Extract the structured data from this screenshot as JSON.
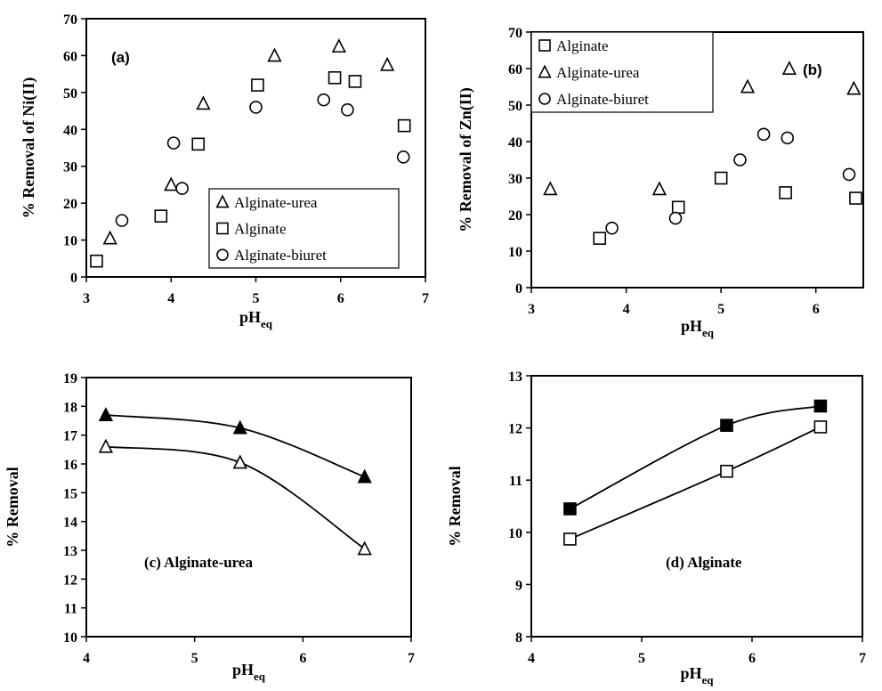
{
  "figure_colors": {
    "marker_stroke": "#000000",
    "line": "#000000",
    "background": "#ffffff"
  },
  "chart_data": [
    {
      "id": "a",
      "type": "scatter",
      "panel_label": "(a)",
      "xlabel": "pH",
      "xlabel_sub": "eq",
      "ylabel": "% Removal of Ni(II)",
      "xlim": [
        3,
        7
      ],
      "ylim": [
        0,
        70
      ],
      "xticks": [
        3,
        4,
        5,
        6,
        7
      ],
      "yticks": [
        0,
        10,
        20,
        30,
        40,
        50,
        60,
        70
      ],
      "grid": false,
      "legend_position": "bottom-right",
      "legend": [
        "Alginate-urea",
        "Alginate",
        "Alginate-biuret"
      ],
      "series": [
        {
          "name": "Alginate-urea",
          "marker": "triangle",
          "filled": false,
          "x": [
            3.28,
            4.0,
            4.38,
            5.22,
            5.98,
            6.55
          ],
          "y": [
            10.5,
            25.0,
            47.0,
            60.0,
            62.5,
            57.5
          ]
        },
        {
          "name": "Alginate",
          "marker": "square",
          "filled": false,
          "x": [
            3.12,
            3.88,
            4.32,
            5.02,
            5.93,
            6.17,
            6.75
          ],
          "y": [
            4.3,
            16.5,
            36.0,
            52.0,
            54.0,
            53.0,
            41.0
          ]
        },
        {
          "name": "Alginate-biuret",
          "marker": "circle",
          "filled": false,
          "x": [
            3.42,
            4.03,
            4.13,
            5.0,
            5.8,
            6.08,
            6.74
          ],
          "y": [
            15.3,
            36.3,
            24.0,
            46.0,
            48.0,
            45.3,
            32.5
          ]
        }
      ]
    },
    {
      "id": "b",
      "type": "scatter",
      "panel_label": "(b)",
      "xlabel": "pH",
      "xlabel_sub": "eq",
      "ylabel": "% Removal of Zn(II)",
      "xlim": [
        3,
        6.5
      ],
      "ylim": [
        0,
        70
      ],
      "xticks": [
        3,
        4,
        5,
        6
      ],
      "yticks": [
        0,
        10,
        20,
        30,
        40,
        50,
        60,
        70
      ],
      "grid": false,
      "legend_position": "top-left",
      "legend": [
        "Alginate",
        "Alginate-urea",
        "Alginate-biuret"
      ],
      "series": [
        {
          "name": "Alginate",
          "marker": "square",
          "filled": false,
          "x": [
            3.72,
            4.55,
            5.0,
            5.68,
            6.42
          ],
          "y": [
            13.5,
            22.0,
            30.0,
            26.0,
            24.5
          ]
        },
        {
          "name": "Alginate-urea",
          "marker": "triangle",
          "filled": false,
          "x": [
            3.2,
            4.35,
            5.28,
            5.72,
            6.4
          ],
          "y": [
            27.0,
            27.0,
            55.0,
            60.0,
            54.5
          ]
        },
        {
          "name": "Alginate-biuret",
          "marker": "circle",
          "filled": false,
          "x": [
            3.85,
            4.52,
            5.2,
            5.45,
            5.7,
            6.35
          ],
          "y": [
            16.3,
            19.0,
            35.0,
            42.0,
            41.0,
            31.0
          ]
        }
      ]
    },
    {
      "id": "c",
      "type": "line",
      "panel_label": "(c) Alginate-urea",
      "xlabel": "pH",
      "xlabel_sub": "eq",
      "ylabel": "% Removal",
      "xlim": [
        4,
        7
      ],
      "ylim": [
        10,
        19
      ],
      "xticks": [
        4,
        5,
        6,
        7
      ],
      "yticks": [
        10,
        11,
        12,
        13,
        14,
        15,
        16,
        17,
        18,
        19
      ],
      "grid": false,
      "series": [
        {
          "marker": "triangle",
          "filled": true,
          "x": [
            4.18,
            5.42,
            6.57
          ],
          "y": [
            17.7,
            17.25,
            15.55
          ]
        },
        {
          "marker": "triangle",
          "filled": false,
          "x": [
            4.18,
            5.42,
            6.57
          ],
          "y": [
            16.6,
            16.05,
            13.05
          ]
        }
      ]
    },
    {
      "id": "d",
      "type": "line",
      "panel_label": "(d) Alginate",
      "xlabel": "pH",
      "xlabel_sub": "eq",
      "ylabel": "% Removal",
      "xlim": [
        4,
        7
      ],
      "ylim": [
        8,
        13
      ],
      "xticks": [
        4,
        5,
        6,
        7
      ],
      "yticks": [
        8,
        9,
        10,
        11,
        12,
        13
      ],
      "grid": false,
      "series": [
        {
          "marker": "square",
          "filled": true,
          "x": [
            4.35,
            5.77,
            6.62
          ],
          "y": [
            10.45,
            12.05,
            12.42
          ]
        },
        {
          "marker": "square",
          "filled": false,
          "x": [
            4.35,
            5.77,
            6.62
          ],
          "y": [
            9.87,
            11.17,
            12.02
          ]
        }
      ]
    }
  ]
}
